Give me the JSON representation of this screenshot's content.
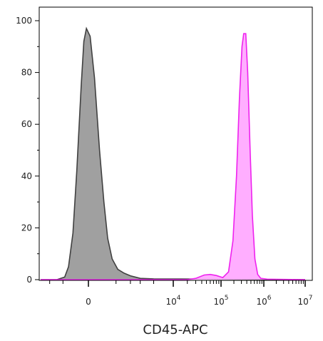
{
  "chart_data": {
    "type": "area",
    "xlabel": "CD45-APC",
    "ylabel": "",
    "x_scale": "biexponential",
    "xlim": [
      -3000,
      10000000
    ],
    "ylim": [
      0,
      105
    ],
    "grid": false,
    "y_ticks": [
      {
        "value": 0,
        "label": "0"
      },
      {
        "value": 20,
        "label": "20"
      },
      {
        "value": 40,
        "label": "40"
      },
      {
        "value": 60,
        "label": "60"
      },
      {
        "value": 80,
        "label": "80"
      },
      {
        "value": 100,
        "label": "100"
      }
    ],
    "x_ticks": [
      {
        "value": 0,
        "base": "0",
        "exp": ""
      },
      {
        "value": 10000,
        "base": "10",
        "exp": "4"
      },
      {
        "value": 100000,
        "base": "10",
        "exp": "5"
      },
      {
        "value": 1000000,
        "base": "10",
        "exp": "6"
      },
      {
        "value": 10000000,
        "base": "10",
        "exp": "7"
      }
    ],
    "series": [
      {
        "color": "#a0a0a0",
        "stroke": "#404040",
        "points": [
          [
            -3000,
            0
          ],
          [
            -1400,
            0
          ],
          [
            -900,
            1
          ],
          [
            -700,
            5
          ],
          [
            -500,
            18
          ],
          [
            -350,
            42
          ],
          [
            -200,
            75
          ],
          [
            -120,
            92
          ],
          [
            -50,
            97
          ],
          [
            40,
            94
          ],
          [
            150,
            78
          ],
          [
            300,
            50
          ],
          [
            450,
            30
          ],
          [
            600,
            16
          ],
          [
            800,
            8
          ],
          [
            1100,
            4
          ],
          [
            1500,
            2.5
          ],
          [
            2000,
            1.5
          ],
          [
            3000,
            0.5
          ],
          [
            5000,
            0.3
          ],
          [
            10000000,
            0
          ]
        ]
      },
      {
        "color": "#ffaaff",
        "stroke": "#ee22ee",
        "points": [
          [
            -3000,
            0
          ],
          [
            20000,
            0
          ],
          [
            30000,
            0.5
          ],
          [
            45000,
            1.8
          ],
          [
            60000,
            2
          ],
          [
            80000,
            1.6
          ],
          [
            110000,
            0.8
          ],
          [
            150000,
            3
          ],
          [
            190000,
            15
          ],
          [
            230000,
            40
          ],
          [
            270000,
            70
          ],
          [
            310000,
            90
          ],
          [
            340000,
            95
          ],
          [
            380000,
            95
          ],
          [
            420000,
            80
          ],
          [
            480000,
            50
          ],
          [
            540000,
            25
          ],
          [
            620000,
            8
          ],
          [
            720000,
            2
          ],
          [
            850000,
            0.5
          ],
          [
            1200000,
            0.2
          ],
          [
            10000000,
            0
          ]
        ]
      }
    ]
  }
}
